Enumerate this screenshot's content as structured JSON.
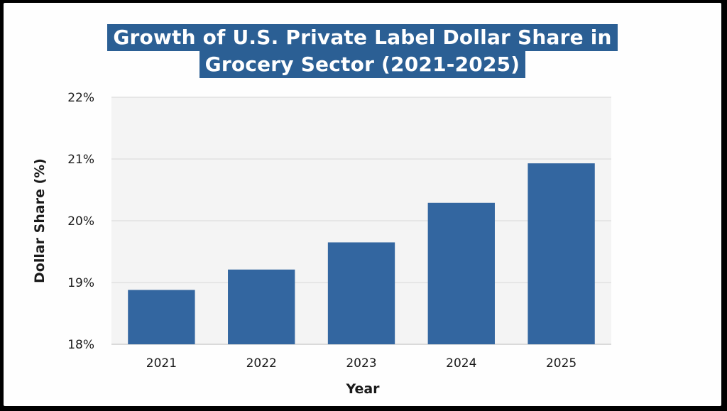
{
  "chart_data": {
    "type": "bar",
    "title_lines": [
      "Growth of U.S. Private Label Dollar Share in",
      "Grocery Sector (2021-2025)"
    ],
    "categories": [
      "2021",
      "2022",
      "2023",
      "2024",
      "2025"
    ],
    "values": [
      18.88,
      19.21,
      19.65,
      20.29,
      20.93
    ],
    "xlabel": "Year",
    "ylabel": "Dollar Share (%)",
    "ylim": [
      18,
      22
    ],
    "yticks": [
      18,
      19,
      20,
      21,
      22
    ],
    "ytick_labels": [
      "18%",
      "19%",
      "20%",
      "21%",
      "22%"
    ],
    "grid": true,
    "bar_color": "#3366a0",
    "grid_color": "#e2e2e2",
    "plot_bg": "#f4f4f4",
    "title_bg": "#2b5f94"
  }
}
